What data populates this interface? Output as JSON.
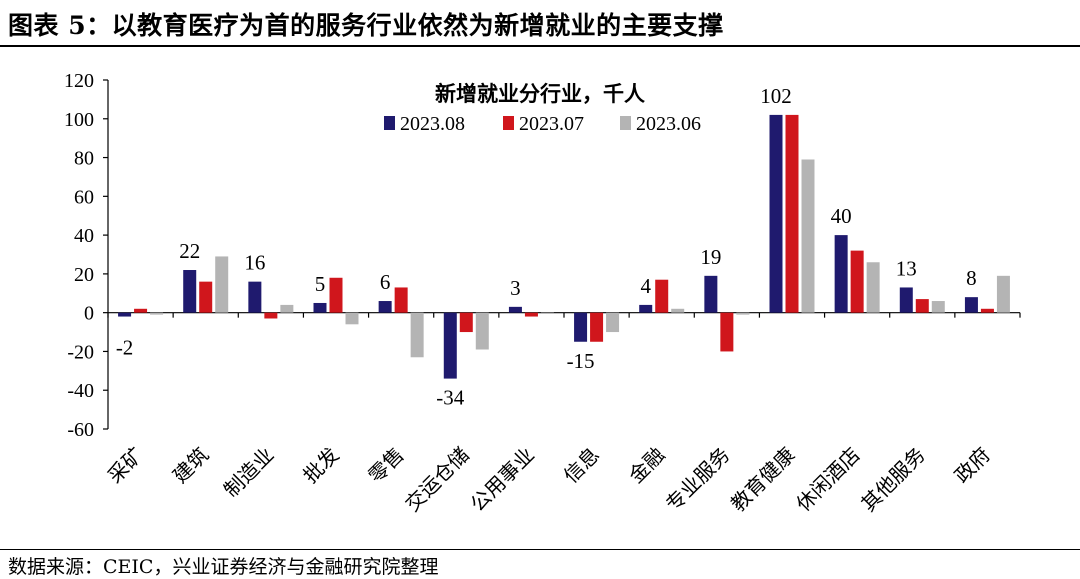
{
  "figure": {
    "title": "图表 5：以教育医疗为首的服务行业依然为新增就业的主要支撑",
    "source": "数据来源：CEIC，兴业证券经济与金融研究院整理"
  },
  "chart_data": {
    "type": "bar",
    "title": "新增就业分行业，千人",
    "xlabel": "",
    "ylabel": "",
    "ylim": [
      -60,
      120
    ],
    "yticks": [
      -60,
      -40,
      -20,
      0,
      20,
      40,
      60,
      80,
      100,
      120
    ],
    "grid": false,
    "legend_position": "top-center",
    "categories": [
      "采矿",
      "建筑",
      "制造业",
      "批发",
      "零售",
      "交运仓储",
      "公用事业",
      "信息",
      "金融",
      "专业服务",
      "教育健康",
      "休闲酒店",
      "其他服务",
      "政府"
    ],
    "series": [
      {
        "name": "2023.08",
        "color": "#1f1a6e",
        "values": [
          -2,
          22,
          16,
          5,
          6,
          -34,
          3,
          -15,
          4,
          19,
          102,
          40,
          13,
          8
        ]
      },
      {
        "name": "2023.07",
        "color": "#d0161c",
        "values": [
          2,
          16,
          -3,
          18,
          13,
          -10,
          -2,
          -15,
          17,
          -20,
          102,
          32,
          7,
          2
        ]
      },
      {
        "name": "2023.06",
        "color": "#b4b4b4",
        "values": [
          -1,
          29,
          4,
          -6,
          -23,
          -19,
          0,
          -10,
          2,
          -1,
          79,
          26,
          6,
          19
        ]
      }
    ],
    "data_labels": [
      "-2",
      "22",
      "16",
      "5",
      "6",
      "-34",
      "3",
      "-15",
      "4",
      "19",
      "102",
      "40",
      "13",
      "8"
    ]
  }
}
